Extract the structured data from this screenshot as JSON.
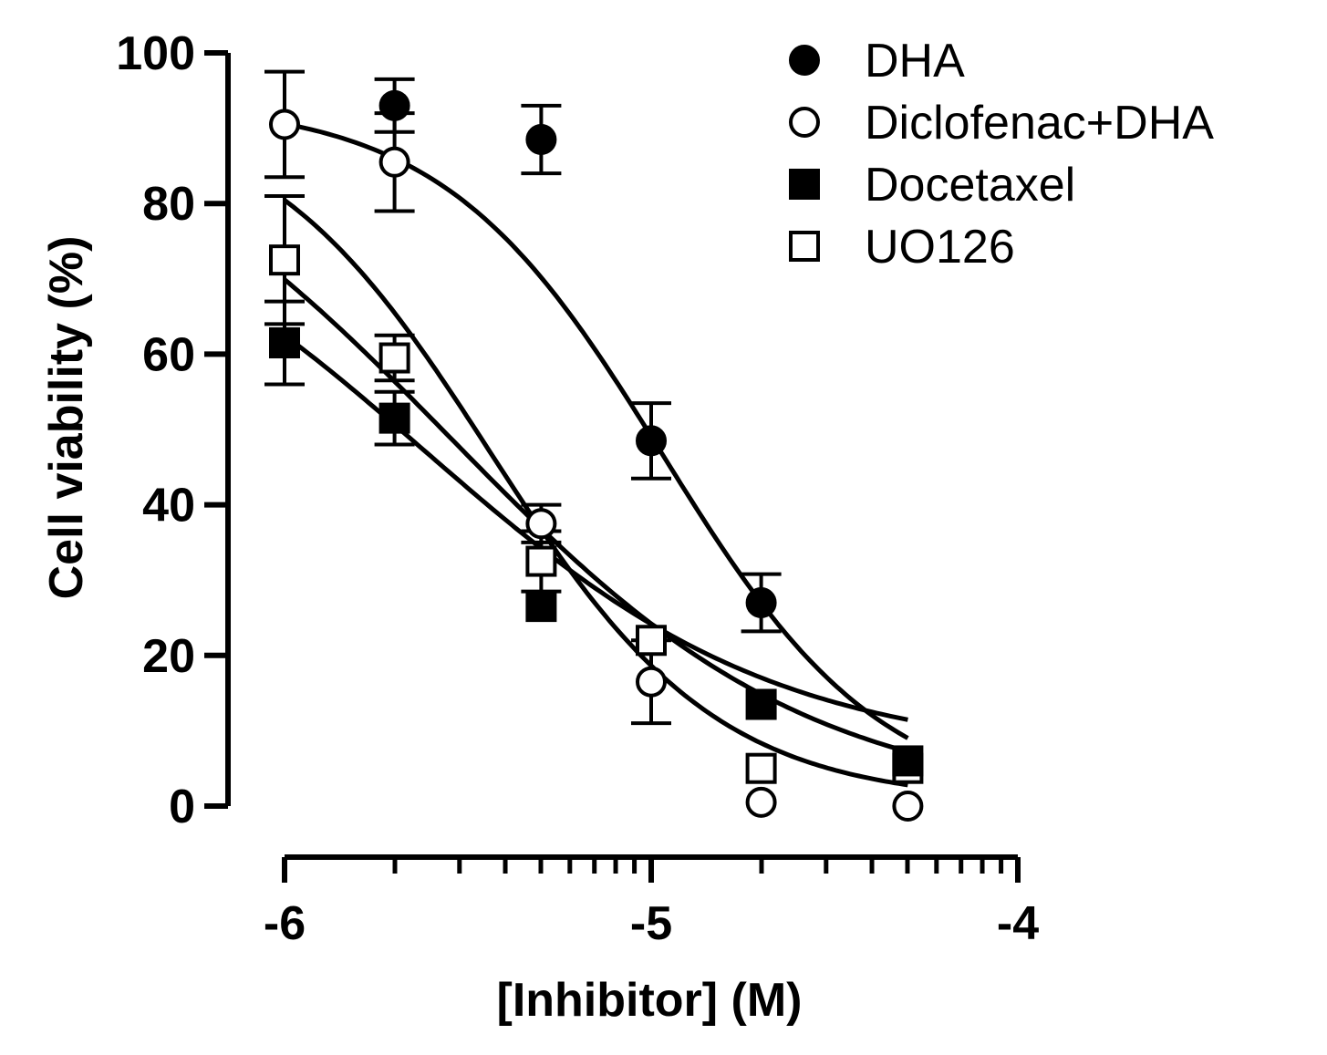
{
  "chart_data": {
    "type": "scatter",
    "title": "",
    "xlabel": "[Inhibitor] (M)",
    "ylabel": "Cell viability (%)",
    "x_scale": "log10",
    "xlim": [
      -6,
      -4
    ],
    "ylim": [
      0,
      100
    ],
    "x_ticks": [
      -6,
      -5,
      -4
    ],
    "x_tick_labels": [
      "-6",
      "-5",
      "-4"
    ],
    "y_ticks": [
      0,
      20,
      40,
      60,
      80,
      100
    ],
    "y_tick_labels": [
      "0",
      "20",
      "40",
      "60",
      "80",
      "100"
    ],
    "legend_position": "top-right",
    "series": [
      {
        "name": "DHA",
        "marker": "filled-circle",
        "x": [
          -6.0,
          -5.7,
          -5.3,
          -5.0,
          -4.7,
          -4.3
        ],
        "y": [
          null,
          93.0,
          88.5,
          48.5,
          27.0,
          null
        ],
        "err": [
          null,
          3.5,
          4.5,
          5.0,
          3.8,
          null
        ],
        "fit": {
          "top": 93.5,
          "bottom": 0.0,
          "logEC50": -4.97,
          "hill": 1.45
        }
      },
      {
        "name": "Diclofenac+DHA",
        "marker": "open-circle",
        "x": [
          -6.0,
          -5.7,
          -5.3,
          -5.0,
          -4.7,
          -4.3
        ],
        "y": [
          90.5,
          85.5,
          37.5,
          16.5,
          0.5,
          0.0
        ],
        "err": [
          7.0,
          6.5,
          2.5,
          5.5,
          null,
          null
        ],
        "fit": {
          "top": 93.6,
          "bottom": 0.5,
          "logEC50": -5.44,
          "hill": 1.4
        }
      },
      {
        "name": "Docetaxel",
        "marker": "filled-square",
        "x": [
          -6.0,
          -5.7,
          -5.3,
          -5.0,
          -4.7,
          -4.3
        ],
        "y": [
          61.5,
          51.5,
          26.5,
          null,
          13.5,
          6.0
        ],
        "err": [
          5.5,
          3.5,
          null,
          null,
          null,
          null
        ],
        "fit": {
          "top": 88.0,
          "bottom": 6.5,
          "logEC50": -5.62,
          "hill": 0.9
        }
      },
      {
        "name": "UO126",
        "marker": "open-square",
        "x": [
          -6.0,
          -5.7,
          -5.3,
          -5.0,
          -4.7,
          -4.3
        ],
        "y": [
          72.5,
          59.5,
          32.5,
          22.0,
          5.0,
          5.0
        ],
        "err": [
          8.5,
          3.0,
          4.0,
          null,
          null,
          null
        ],
        "fit": {
          "top": 98.0,
          "bottom": 0.0,
          "logEC50": -5.55,
          "hill": 0.88
        }
      }
    ]
  }
}
